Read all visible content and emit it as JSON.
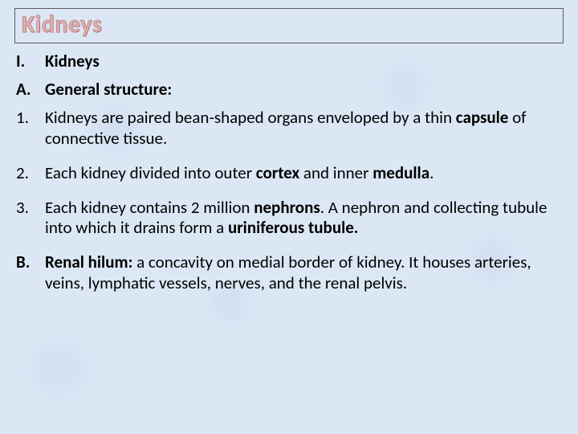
{
  "title": "Kidneys",
  "items": [
    {
      "marker": "I.",
      "markerBold": true,
      "line1": "<b>Kidneys</b>"
    },
    {
      "marker": "A.",
      "markerBold": true,
      "line1": "<b>General structure:</b>"
    },
    {
      "marker": "1.",
      "markerBold": false,
      "line1": "Kidneys are paired bean-shaped organs enveloped by a thin <b>capsule</b> of connective tissue."
    },
    {
      "marker": "2.",
      "markerBold": false,
      "line1": "Each kidney divided into outer <b>cortex</b> and inner <b>medulla</b>."
    },
    {
      "marker": "3.",
      "markerBold": false,
      "line1": "Each kidney contains 2 million <b>nephrons</b>. A nephron and collecting tubule into which it drains form a <b>uriniferous tubule.</b>"
    },
    {
      "marker": "B.",
      "markerBold": true,
      "line1": "<b>Renal hilum:</b> a concavity on medial border of kidney. It houses arteries, veins, lymphatic vessels, nerves, and the renal pelvis."
    }
  ],
  "spacing": [
    10,
    10,
    18,
    18,
    18,
    0
  ]
}
